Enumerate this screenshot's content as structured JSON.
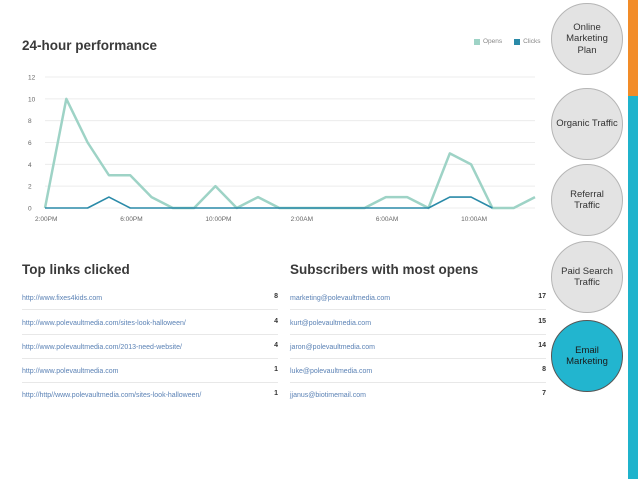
{
  "performance": {
    "title": "24-hour performance",
    "legend": [
      {
        "label": "Opens",
        "color": "#9ed3c6"
      },
      {
        "label": "Clicks",
        "color": "#2a8aa8"
      }
    ]
  },
  "chart_data": {
    "type": "line",
    "title": "24-hour performance",
    "ylim": [
      0,
      12
    ],
    "yticks": [
      "0",
      "2",
      "4",
      "6",
      "8",
      "10",
      "12"
    ],
    "xticks": [
      "2:00PM",
      "6:00PM",
      "10:00PM",
      "2:00AM",
      "6:00AM",
      "10:00AM"
    ],
    "grid": true,
    "legend_position": "top-right",
    "x": [
      0,
      1,
      2,
      3,
      4,
      5,
      6,
      7,
      8,
      9,
      10,
      11,
      12,
      13,
      14,
      15,
      16,
      17,
      18,
      19,
      20,
      21,
      22,
      23
    ],
    "series": [
      {
        "name": "Opens",
        "color": "#9ed3c6",
        "values": [
          0,
          10,
          6,
          3,
          3,
          1,
          0,
          0,
          2,
          0,
          1,
          0,
          0,
          0,
          0,
          0,
          1,
          1,
          0,
          5,
          4,
          0,
          0,
          1
        ]
      },
      {
        "name": "Clicks",
        "color": "#2a8aa8",
        "values": [
          0,
          0,
          0,
          1,
          0,
          0,
          0,
          0,
          0,
          0,
          0,
          0,
          0,
          0,
          0,
          0,
          0,
          0,
          0,
          1,
          1,
          0,
          null,
          null
        ]
      }
    ]
  },
  "top_links": {
    "title": "Top links clicked",
    "items": [
      {
        "url": "http://www.fixes4kids.com",
        "count": "8"
      },
      {
        "url": "http://www.polevaultmedia.com/sites-look-halloween/",
        "count": "4"
      },
      {
        "url": "http://www.polevaultmedia.com/2013-need-website/",
        "count": "4"
      },
      {
        "url": "http://www.polevaultmedia.com",
        "count": "1"
      },
      {
        "url": "http://http//www.polevaultmedia.com/sites-look-halloween/",
        "count": "1"
      }
    ]
  },
  "subscribers": {
    "title": "Subscribers with most opens",
    "items": [
      {
        "email": "marketing@polevaultmedia.com",
        "count": "17"
      },
      {
        "email": "kurt@polevaultmedia.com",
        "count": "15"
      },
      {
        "email": "jaron@polevaultmedia.com",
        "count": "14"
      },
      {
        "email": "luke@polevaultmedia.com",
        "count": "8"
      },
      {
        "email": "jjanus@biotimemail.com",
        "count": "7"
      }
    ]
  },
  "nav": {
    "items": [
      {
        "label": "Online Marketing Plan",
        "active": false
      },
      {
        "label": "Organic Traffic",
        "active": false
      },
      {
        "label": "Referral Traffic",
        "active": false
      },
      {
        "label": "Paid Search Traffic",
        "active": false
      },
      {
        "label": "Email Marketing",
        "active": true
      }
    ]
  }
}
